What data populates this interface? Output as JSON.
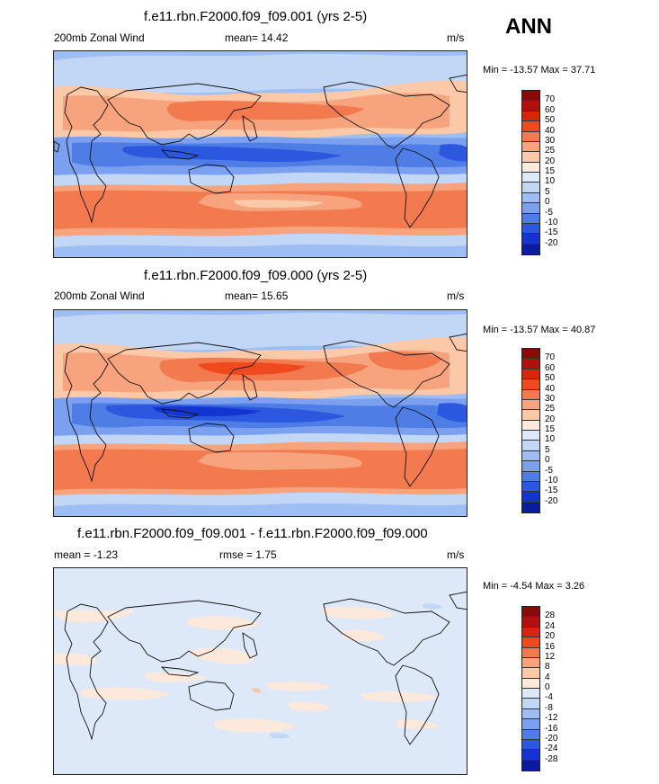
{
  "season": "ANN",
  "panels": [
    {
      "title": "f.e11.rbn.F2000.f09_f09.001 (yrs 2-5)",
      "left_label": "200mb Zonal Wind",
      "center_label": "mean=  14.42",
      "units": "m/s",
      "minmax": "Min = -13.57 Max =  37.71",
      "levels": [
        "70",
        "60",
        "50",
        "40",
        "30",
        "25",
        "20",
        "15",
        "10",
        "5",
        "0",
        "-5",
        "-10",
        "-15",
        "-20"
      ],
      "colors": [
        "#8a0a0a",
        "#b01010",
        "#d8260a",
        "#ee4a1e",
        "#f27a4e",
        "#f7a47e",
        "#fbc8a8",
        "#fde8dc",
        "#dde9f8",
        "#c2d6f6",
        "#9ebdf3",
        "#7aa0ef",
        "#4f7de6",
        "#2c58e0",
        "#1434d0",
        "#0a1ba0"
      ]
    },
    {
      "title": "f.e11.rbn.F2000.f09_f09.000 (yrs 2-5)",
      "left_label": "200mb Zonal Wind",
      "center_label": "mean=  15.65",
      "units": "m/s",
      "minmax": "Min = -13.57 Max =  40.87",
      "levels": [
        "70",
        "60",
        "50",
        "40",
        "30",
        "25",
        "20",
        "15",
        "10",
        "5",
        "0",
        "-5",
        "-10",
        "-15",
        "-20"
      ],
      "colors": [
        "#8a0a0a",
        "#b01010",
        "#d8260a",
        "#ee4a1e",
        "#f27a4e",
        "#f7a47e",
        "#fbc8a8",
        "#fde8dc",
        "#dde9f8",
        "#c2d6f6",
        "#9ebdf3",
        "#7aa0ef",
        "#4f7de6",
        "#2c58e0",
        "#1434d0",
        "#0a1ba0"
      ]
    },
    {
      "title": "f.e11.rbn.F2000.f09_f09.001 - f.e11.rbn.F2000.f09_f09.000",
      "left_label": "mean =  -1.23",
      "center_label": "rmse =   1.75",
      "units": "m/s",
      "minmax": "Min =  -4.54 Max =   3.26",
      "levels": [
        "28",
        "24",
        "20",
        "16",
        "12",
        "8",
        "4",
        "0",
        "-4",
        "-8",
        "-12",
        "-16",
        "-20",
        "-24",
        "-28"
      ],
      "colors": [
        "#8a0a0a",
        "#b01010",
        "#d8260a",
        "#ee4a1e",
        "#f27a4e",
        "#f7a47e",
        "#fbc8a8",
        "#fde8dc",
        "#dde9f8",
        "#c2d6f6",
        "#9ebdf3",
        "#7aa0ef",
        "#4f7de6",
        "#2c58e0",
        "#1434d0",
        "#0a1ba0"
      ]
    }
  ]
}
